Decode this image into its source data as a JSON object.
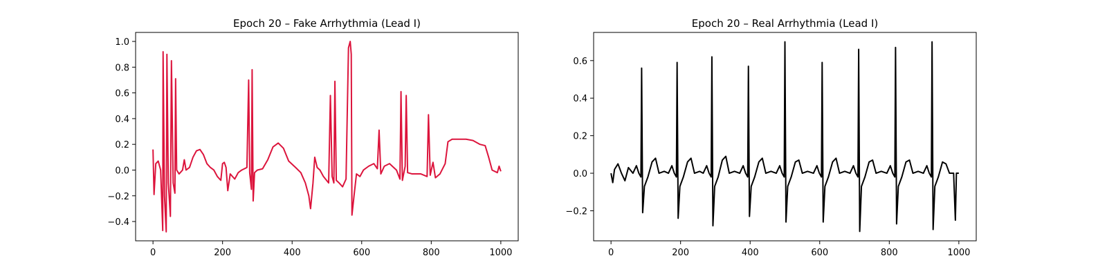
{
  "chart_data": [
    {
      "type": "line",
      "title": "Epoch 20 – Fake Arrhythmia (Lead I)",
      "color": "#dc143c",
      "xlim": [
        -50,
        1050
      ],
      "ylim": [
        -0.55,
        1.07
      ],
      "xticks": [
        0,
        200,
        400,
        600,
        800,
        1000
      ],
      "yticks": [
        {
          "value": -0.4,
          "label": "−0.4"
        },
        {
          "value": -0.2,
          "label": "−0.2"
        },
        {
          "value": 0,
          "label": "0.0"
        },
        0.2,
        0.4,
        0.6,
        0.8,
        {
          "value": 1,
          "label": "1.0"
        }
      ],
      "x": [
        0,
        3,
        8,
        15,
        22,
        28,
        29,
        33,
        38,
        40,
        44,
        50,
        53,
        58,
        63,
        65,
        68,
        75,
        85,
        90,
        95,
        105,
        115,
        125,
        135,
        145,
        155,
        165,
        175,
        185,
        195,
        200,
        205,
        210,
        215,
        222,
        235,
        245,
        255,
        270,
        275,
        278,
        283,
        285,
        288,
        292,
        300,
        315,
        330,
        345,
        360,
        375,
        390,
        410,
        425,
        438,
        448,
        453,
        460,
        465,
        472,
        480,
        490,
        505,
        510,
        515,
        520,
        523,
        527,
        535,
        545,
        555,
        562,
        567,
        570,
        572,
        578,
        585,
        595,
        605,
        620,
        635,
        645,
        650,
        655,
        665,
        680,
        700,
        710,
        713,
        717,
        725,
        728,
        732,
        745,
        770,
        788,
        792,
        797,
        805,
        812,
        825,
        840,
        848,
        860,
        880,
        900,
        920,
        940,
        955,
        965,
        975,
        990,
        995,
        1000
      ],
      "values": [
        0.16,
        -0.19,
        0.05,
        0.07,
        0.0,
        -0.47,
        0.92,
        -0.2,
        -0.48,
        0.9,
        -0.1,
        -0.36,
        0.85,
        -0.1,
        -0.18,
        0.71,
        0.0,
        -0.03,
        0.0,
        0.08,
        0.0,
        0.02,
        0.1,
        0.15,
        0.16,
        0.12,
        0.05,
        0.02,
        0.0,
        -0.05,
        -0.08,
        0.05,
        0.06,
        0.02,
        -0.16,
        -0.03,
        -0.07,
        -0.02,
        0.0,
        0.02,
        0.7,
        -0.02,
        -0.15,
        0.78,
        -0.24,
        -0.02,
        0.0,
        0.01,
        0.08,
        0.18,
        0.21,
        0.17,
        0.07,
        0.02,
        -0.02,
        -0.1,
        -0.2,
        -0.3,
        -0.1,
        0.1,
        0.02,
        0.0,
        -0.05,
        -0.1,
        0.58,
        -0.05,
        -0.1,
        0.69,
        -0.08,
        -0.1,
        -0.13,
        -0.07,
        0.95,
        1.0,
        0.9,
        -0.35,
        -0.2,
        -0.03,
        -0.05,
        0.0,
        0.03,
        0.05,
        0.01,
        0.31,
        -0.03,
        0.03,
        0.05,
        0.0,
        -0.07,
        0.61,
        -0.08,
        0.03,
        0.58,
        -0.02,
        -0.03,
        -0.03,
        -0.05,
        0.43,
        -0.04,
        0.06,
        -0.06,
        -0.03,
        0.05,
        0.22,
        0.24,
        0.24,
        0.24,
        0.23,
        0.2,
        0.19,
        0.1,
        0.0,
        -0.02,
        0.03,
        -0.01
      ]
    },
    {
      "type": "line",
      "title": "Epoch 20 – Real Arrhythmia (Lead I)",
      "color": "#000000",
      "xlim": [
        -50,
        1050
      ],
      "ylim": [
        -0.36,
        0.75
      ],
      "xticks": [
        0,
        200,
        400,
        600,
        800,
        1000
      ],
      "yticks": [
        {
          "value": -0.2,
          "label": "−0.2"
        },
        {
          "value": 0,
          "label": "0.0"
        },
        0.2,
        0.4,
        0.6
      ],
      "x": [
        0,
        5,
        10,
        20,
        30,
        40,
        50,
        63,
        73,
        80,
        86,
        88,
        91,
        96,
        106,
        118,
        128,
        138,
        153,
        165,
        175,
        182,
        188,
        190,
        193,
        198,
        208,
        220,
        230,
        240,
        255,
        265,
        275,
        282,
        288,
        290,
        293,
        298,
        308,
        320,
        330,
        340,
        355,
        370,
        380,
        387,
        393,
        395,
        398,
        403,
        413,
        425,
        435,
        445,
        460,
        475,
        485,
        492,
        498,
        500,
        503,
        508,
        518,
        530,
        540,
        550,
        565,
        582,
        592,
        599,
        605,
        607,
        610,
        615,
        625,
        637,
        647,
        657,
        672,
        687,
        697,
        704,
        710,
        712,
        715,
        720,
        730,
        742,
        752,
        762,
        777,
        793,
        803,
        810,
        816,
        818,
        821,
        826,
        836,
        848,
        858,
        868,
        883,
        898,
        908,
        915,
        921,
        923,
        926,
        931,
        941,
        953,
        963,
        973,
        985,
        990,
        993,
        1000
      ],
      "values": [
        0.0,
        -0.05,
        0.02,
        0.05,
        0.0,
        -0.04,
        0.03,
        0.0,
        0.04,
        0.0,
        -0.02,
        0.56,
        -0.21,
        -0.07,
        -0.02,
        0.06,
        0.08,
        0.0,
        0.01,
        0.0,
        0.04,
        0.0,
        -0.02,
        0.59,
        -0.24,
        -0.07,
        -0.02,
        0.06,
        0.08,
        0.0,
        0.01,
        0.0,
        0.04,
        0.0,
        -0.02,
        0.62,
        -0.28,
        -0.07,
        -0.02,
        0.07,
        0.09,
        0.0,
        0.01,
        0.0,
        0.04,
        0.0,
        -0.02,
        0.57,
        -0.23,
        -0.07,
        -0.02,
        0.06,
        0.08,
        0.0,
        0.01,
        0.0,
        0.04,
        0.0,
        -0.02,
        0.7,
        -0.26,
        -0.07,
        -0.02,
        0.06,
        0.07,
        0.0,
        0.01,
        0.0,
        0.04,
        0.0,
        -0.02,
        0.59,
        -0.26,
        -0.07,
        -0.02,
        0.06,
        0.08,
        0.0,
        0.01,
        0.0,
        0.04,
        0.0,
        -0.02,
        0.66,
        -0.31,
        -0.07,
        -0.02,
        0.06,
        0.07,
        0.0,
        0.01,
        0.0,
        0.04,
        0.0,
        -0.02,
        0.67,
        -0.27,
        -0.07,
        -0.02,
        0.06,
        0.07,
        0.0,
        0.01,
        0.0,
        0.04,
        0.0,
        -0.02,
        0.7,
        -0.3,
        -0.07,
        -0.02,
        0.06,
        0.05,
        0.0,
        0.0,
        -0.25,
        0.0,
        0.0
      ]
    }
  ]
}
